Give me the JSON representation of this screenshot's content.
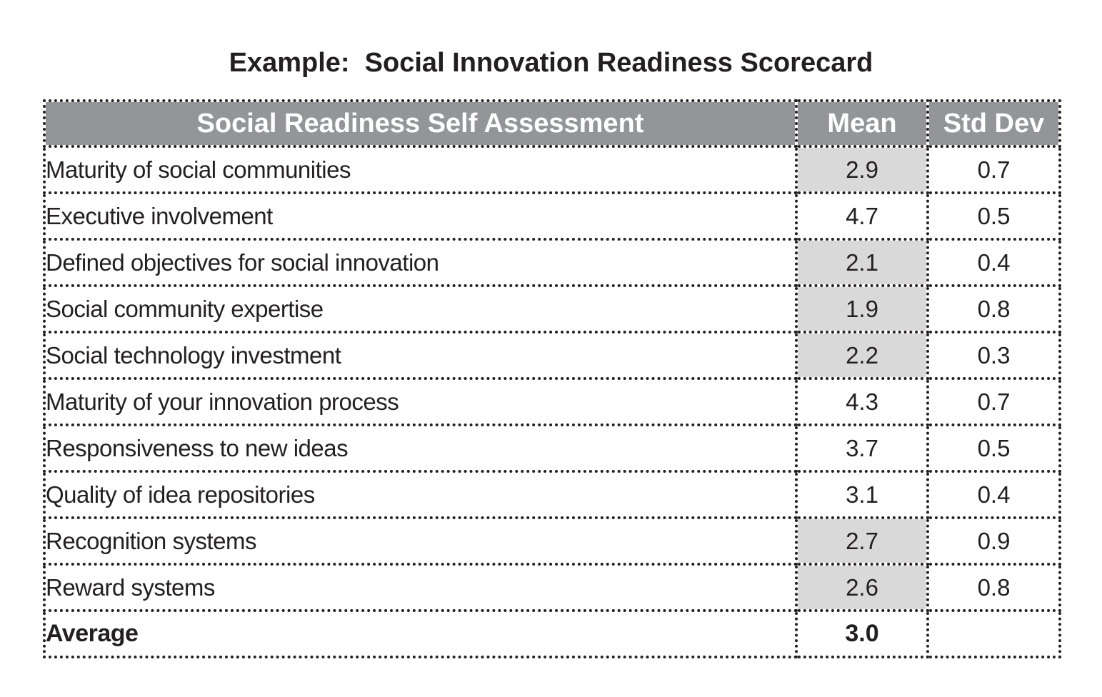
{
  "chart_data": {
    "type": "table",
    "title": "Example:  Social Innovation Readiness Scorecard",
    "columns": [
      "Social Readiness Self Assessment",
      "Mean",
      "Std Dev"
    ],
    "rows": [
      {
        "label": "Maturity of social communities",
        "mean": "2.9",
        "std_dev": "0.7",
        "highlight": true
      },
      {
        "label": "Executive involvement",
        "mean": "4.7",
        "std_dev": "0.5",
        "highlight": false
      },
      {
        "label": "Defined objectives for social innovation",
        "mean": "2.1",
        "std_dev": "0.4",
        "highlight": true
      },
      {
        "label": "Social community expertise",
        "mean": "1.9",
        "std_dev": "0.8",
        "highlight": true
      },
      {
        "label": "Social technology investment",
        "mean": "2.2",
        "std_dev": "0.3",
        "highlight": true
      },
      {
        "label": "Maturity of your innovation process",
        "mean": "4.3",
        "std_dev": "0.7",
        "highlight": false
      },
      {
        "label": "Responsiveness to new ideas",
        "mean": "3.7",
        "std_dev": "0.5",
        "highlight": false
      },
      {
        "label": "Quality of idea repositories",
        "mean": "3.1",
        "std_dev": "0.4",
        "highlight": false
      },
      {
        "label": "Recognition systems",
        "mean": "2.7",
        "std_dev": "0.9",
        "highlight": true
      },
      {
        "label": "Reward systems",
        "mean": "2.6",
        "std_dev": "0.8",
        "highlight": true
      }
    ],
    "summary": {
      "label": "Average",
      "mean": "3.0",
      "std_dev": ""
    }
  },
  "colors": {
    "header_bg": "#939598",
    "header_text": "#ffffff",
    "highlight_bg": "#d9d9da",
    "text": "#231f20",
    "border": "#231f20"
  }
}
